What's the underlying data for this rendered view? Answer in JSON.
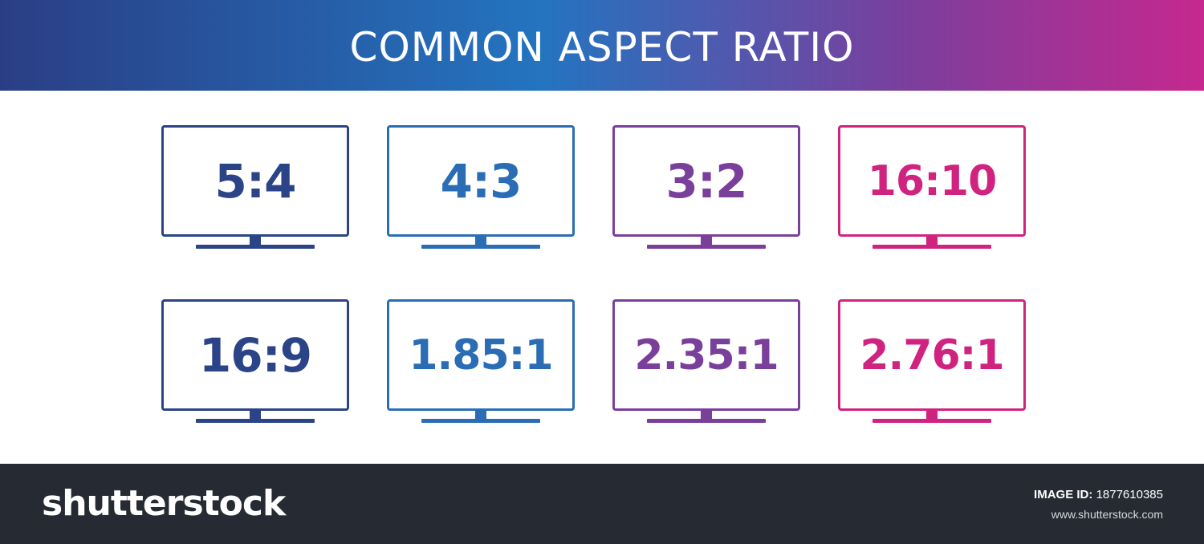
{
  "header": {
    "title": "COMMON ASPECT RATIO"
  },
  "colors": {
    "banner_start": "#2a3e85",
    "banner_mid": "#2474c0",
    "banner_end": "#c6288f",
    "col1": "#2b4488",
    "col2": "#2a6db5",
    "col3": "#7a3e9b",
    "col4": "#d0237f",
    "footer_bg": "#262b33"
  },
  "ratios": [
    [
      "5:4",
      "4:3",
      "3:2",
      "16:10"
    ],
    [
      "16:9",
      "1.85:1",
      "2.35:1",
      "2.76:1"
    ]
  ],
  "icons": [
    "monitor-icon"
  ],
  "footer": {
    "brand": "shutterstock",
    "image_id_label": "IMAGE ID:",
    "image_id_value": "1877610385",
    "site": "www.shutterstock.com"
  }
}
